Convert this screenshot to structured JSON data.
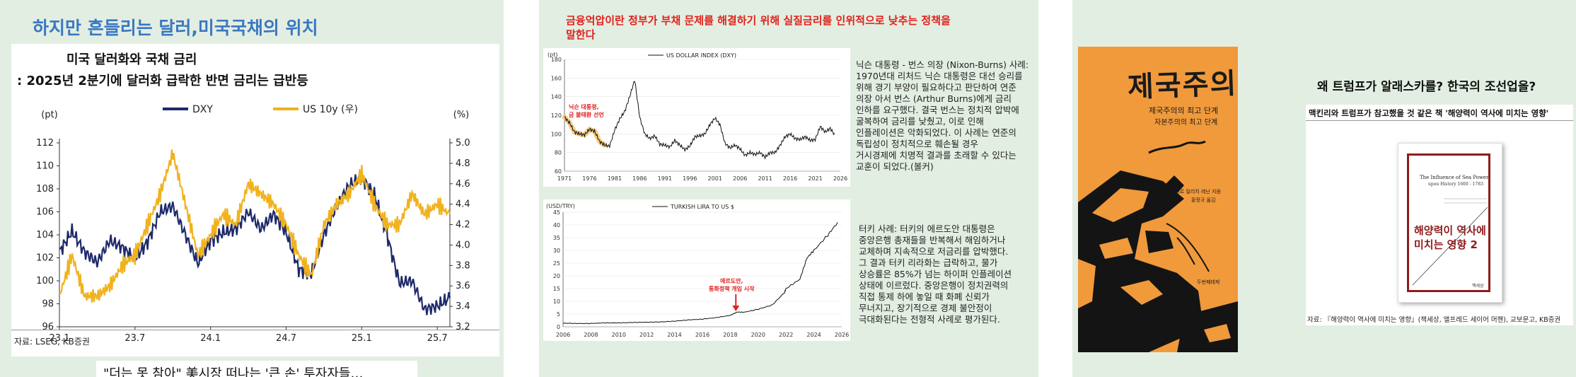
{
  "slide1": {
    "heading": "하지만 흔들리는 달러,미국국채의 위치",
    "chart_title_line1": "미국 달러화와 국채 금리",
    "chart_title_line2": ": 2025년 2분기에 달러화 급락한 반면 금리는 급반등",
    "footer_headline": "\"더는 못 참아\" 美시장 떠나는 '큰 손' 투자자들…"
  },
  "slide2": {
    "heading_line1": "금융억압이란 정부가 부채 문제를 해결하기 위해 실질금리를 인위적으로 낮추는 정책을",
    "heading_line2": "말한다",
    "nixon_text": [
      "닉슨 대통령 - 번스 의장 (Nixon-Burns) 사례:",
      "1970년대 리처드 닉슨 대통령은 대선 승리를",
      "위해 경기 부양이 필요하다고 판단하여 연준",
      "의장 아서 번스 (Arthur Burns)에게 금리",
      "인하를 요구했다. 결국 번스는 정치적 압박에",
      "굴복하여 금리를 낮췄고, 이로 인해",
      "인플레이션은 악화되었다. 이 사례는 연준의",
      "독립성이 정치적으로 훼손될 경우",
      "거시경제에 치명적 결과를 초래할 수 있다는",
      "교훈이 되었다.(볼커)"
    ],
    "turkey_text": [
      "터키 사례: 터키의 에르도안 대통령은",
      "중앙은행 총재들을 반복해서 해임하거나",
      "교체하며 지속적으로 저금리를 압박했다.",
      "그 결과 터키 리라화는 급락하고, 물가",
      "상승률은 85%가 넘는 하이퍼 인플레이션",
      "상태에 이르렀다. 중앙은행이 정치권력의",
      "직접 통제 하에 놓일 때 화폐 신뢰가",
      "무너지고, 장기적으로 경제 불안정이",
      "극대화된다는 전형적 사례로 평가된다."
    ]
  },
  "slide3": {
    "book_cover_title": "제국주의",
    "book_cover_sub1": "제국주의의 최고 단계",
    "book_cover_sub2": "자본주의의 최고 단계",
    "book_cover_author": "블라디미르 일리치 레닌 지음",
    "book_cover_translator": "황정규 옮김",
    "book_cover_publisher": "두번째테제",
    "heading": "왜 트럼프가 알래스카를? 한국의 조선업을?",
    "subheading": "맥킨리와 트럼프가 참고했을 것 같은 책 '해양력이 역사에 미치는 영향'",
    "book_en_title_line1": "The Influence of Sea Power",
    "book_en_title_line2": "upon History 1660 - 1783",
    "book_ko_title_line1": "해양력이 역사에",
    "book_ko_title_line2": "미치는 영향 2",
    "book_publisher": "책세상",
    "source": "자료: 『해양력이 역사에 미치는 영향』(책세상, 앨프레드 세이어 머핸), 교보문고, KB증권"
  },
  "chart_data": [
    {
      "type": "line",
      "title": "미국 달러화와 국채 금리",
      "series": [
        {
          "name": "DXY",
          "color": "#1f2a6b",
          "axis": "left",
          "x": [
            "23.1",
            "23.2",
            "23.3",
            "23.4",
            "23.5",
            "23.6",
            "23.7",
            "23.8",
            "23.9",
            "23.10",
            "23.11",
            "23.12",
            "24.1",
            "24.2",
            "24.3",
            "24.4",
            "24.5",
            "24.6",
            "24.7",
            "24.8",
            "24.9",
            "24.10",
            "24.11",
            "24.12",
            "25.1",
            "25.2",
            "25.3",
            "25.4",
            "25.5",
            "25.6",
            "25.7",
            "25.8"
          ],
          "values": [
            102.5,
            104.3,
            102.5,
            101.6,
            103.5,
            102.9,
            101.9,
            103.4,
            106.0,
            106.5,
            104.0,
            101.5,
            103.5,
            104.2,
            104.5,
            106.0,
            104.5,
            105.8,
            104.2,
            101.0,
            100.6,
            104.0,
            106.5,
            108.3,
            109.0,
            107.5,
            104.0,
            99.8,
            100.0,
            97.5,
            97.8,
            98.5
          ]
        },
        {
          "name": "US 10y (우)",
          "color": "#f1b21e",
          "axis": "right",
          "x": [
            "23.1",
            "23.2",
            "23.3",
            "23.4",
            "23.5",
            "23.6",
            "23.7",
            "23.8",
            "23.9",
            "23.10",
            "23.11",
            "23.12",
            "24.1",
            "24.2",
            "24.3",
            "24.4",
            "24.5",
            "24.6",
            "24.7",
            "24.8",
            "24.9",
            "24.10",
            "24.11",
            "24.12",
            "25.1",
            "25.2",
            "25.3",
            "25.4",
            "25.5",
            "25.6",
            "25.7",
            "25.8"
          ],
          "values": [
            3.5,
            3.9,
            3.5,
            3.5,
            3.6,
            3.8,
            3.9,
            4.2,
            4.5,
            4.9,
            4.4,
            3.9,
            4.1,
            4.3,
            4.2,
            4.6,
            4.5,
            4.4,
            4.2,
            3.9,
            3.7,
            4.2,
            4.4,
            4.5,
            4.7,
            4.4,
            4.2,
            4.2,
            4.5,
            4.3,
            4.4,
            4.3
          ]
        }
      ],
      "xticks": [
        "23.1",
        "23.7",
        "24.1",
        "24.7",
        "25.1",
        "25.7"
      ],
      "ylabel": "(pt)",
      "ylabel_right": "(%)",
      "ylim": [
        96,
        112
      ],
      "ylim_right": [
        3.2,
        5.0
      ],
      "yticks": [
        96,
        98,
        100,
        102,
        104,
        106,
        108,
        110,
        112
      ],
      "yticks_right": [
        3.2,
        3.4,
        3.6,
        3.8,
        4.0,
        4.2,
        4.4,
        4.6,
        4.8,
        5.0
      ],
      "legend": "top",
      "source": "자료: LSEG, KB증권"
    },
    {
      "type": "line",
      "ylabel": "(pt)",
      "series": [
        {
          "name": "US DOLLAR INDEX (DXY)",
          "color": "#111111",
          "x": [
            1971,
            1972,
            1973,
            1974,
            1975,
            1976,
            1977,
            1978,
            1979,
            1980,
            1981,
            1982,
            1983,
            1984,
            1985,
            1986,
            1987,
            1988,
            1989,
            1990,
            1991,
            1992,
            1993,
            1994,
            1995,
            1996,
            1997,
            1998,
            1999,
            2000,
            2001,
            2002,
            2003,
            2004,
            2005,
            2006,
            2007,
            2008,
            2009,
            2010,
            2011,
            2012,
            2013,
            2014,
            2015,
            2016,
            2017,
            2018,
            2019,
            2020,
            2021,
            2022,
            2023,
            2024,
            2025
          ],
          "values": [
            118,
            112,
            102,
            100,
            99,
            105,
            103,
            92,
            88,
            87,
            104,
            116,
            124,
            140,
            158,
            118,
            100,
            95,
            98,
            89,
            88,
            86,
            93,
            88,
            83,
            87,
            97,
            98,
            100,
            110,
            117,
            110,
            90,
            85,
            88,
            84,
            77,
            80,
            78,
            80,
            75,
            80,
            80,
            88,
            97,
            100,
            95,
            94,
            97,
            93,
            94,
            108,
            102,
            106,
            98
          ]
        }
      ],
      "xticks": [
        "1971",
        "1976",
        "1981",
        "1986",
        "1991",
        "1996",
        "2001",
        "2006",
        "2011",
        "2016",
        "2021",
        "2026"
      ],
      "ylim": [
        60,
        180
      ],
      "yticks": [
        60,
        80,
        100,
        120,
        140,
        160,
        180
      ],
      "highlight_range": [
        1971,
        1979
      ],
      "annotation": "닉슨 대통령, 금 불태환 선언"
    },
    {
      "type": "line",
      "ylabel": "(USD/TRY)",
      "series": [
        {
          "name": "TURKISH LIRA TO US $",
          "color": "#111111",
          "x": [
            2006,
            2007,
            2008,
            2009,
            2010,
            2011,
            2012,
            2013,
            2014,
            2015,
            2016,
            2017,
            2018,
            2018.5,
            2019,
            2020,
            2021,
            2021.9,
            2022,
            2023,
            2023.5,
            2024,
            2025,
            2025.7
          ],
          "values": [
            1.4,
            1.3,
            1.3,
            1.55,
            1.5,
            1.7,
            1.8,
            1.9,
            2.2,
            2.7,
            3.0,
            3.6,
            4.5,
            5.8,
            5.7,
            6.9,
            8.5,
            13.5,
            15,
            18.7,
            27,
            30,
            36,
            41
          ]
        }
      ],
      "xticks": [
        "2006",
        "2008",
        "2010",
        "2012",
        "2014",
        "2016",
        "2018",
        "2020",
        "2022",
        "2024",
        "2026"
      ],
      "ylim": [
        0,
        45
      ],
      "yticks": [
        0,
        5,
        10,
        15,
        20,
        25,
        30,
        35,
        40,
        45
      ],
      "annotation": "에르도안, 통화정책 개입 시작",
      "annotation_x": 2018.4
    }
  ]
}
